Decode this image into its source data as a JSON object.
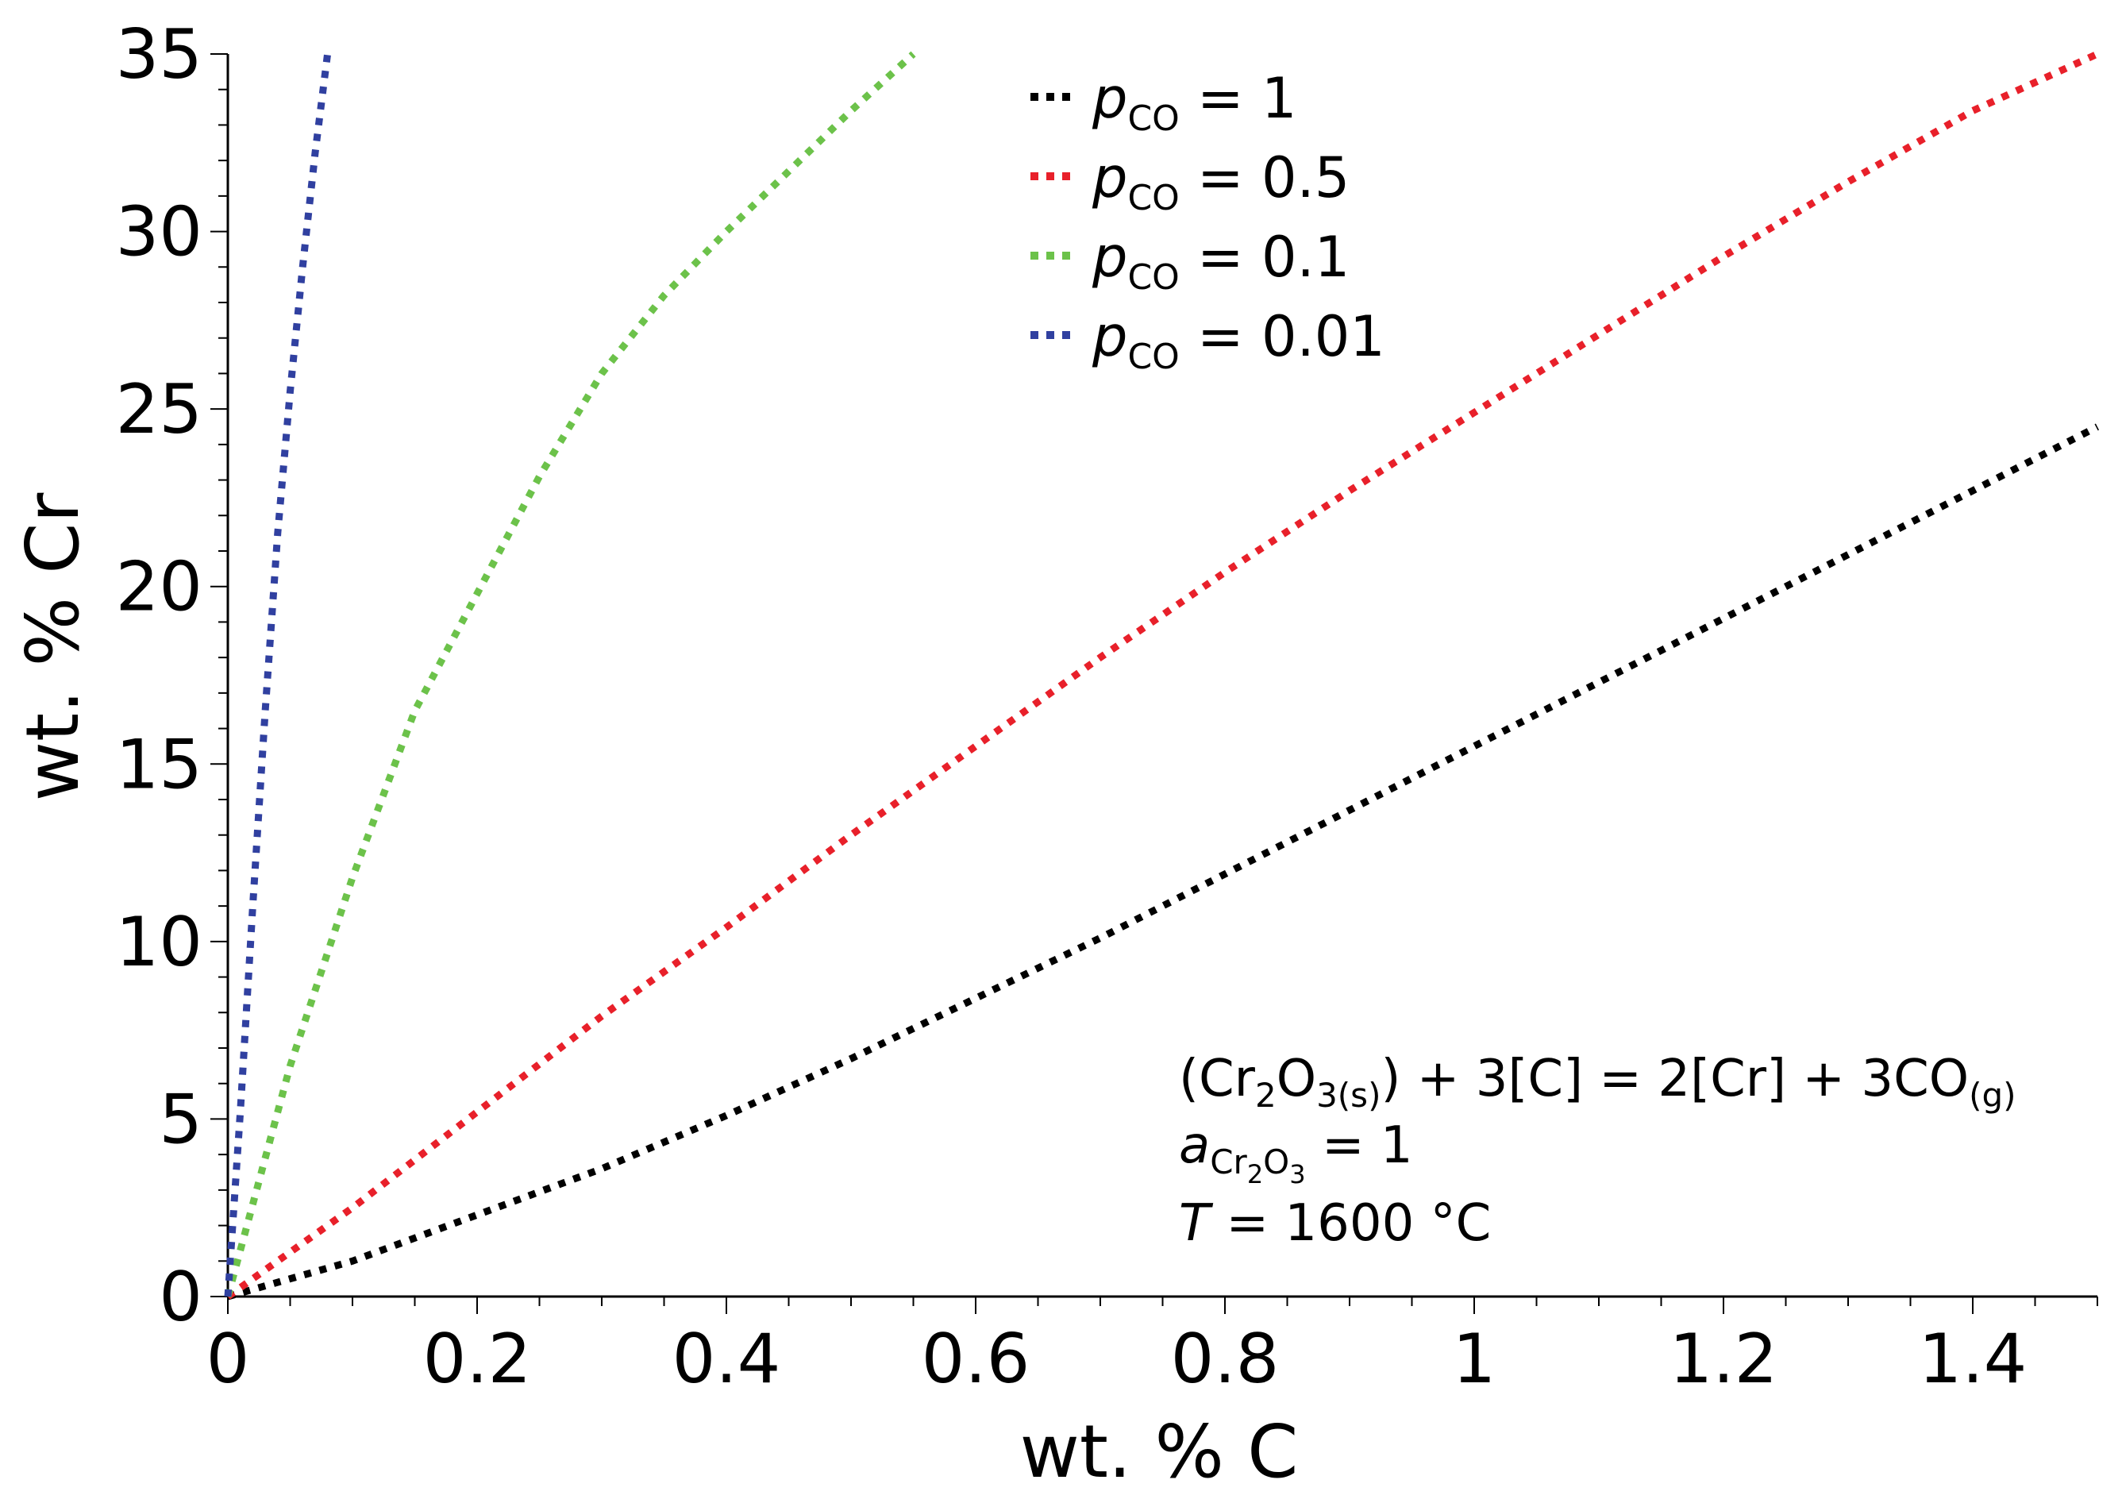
{
  "chart_data": {
    "type": "line",
    "xlabel": "wt. % C",
    "ylabel": "wt. % Cr",
    "xlim": [
      0,
      1.5
    ],
    "ylim": [
      0,
      35
    ],
    "x_ticks": [
      0,
      0.2,
      0.4,
      0.6,
      0.8,
      1,
      1.2,
      1.4
    ],
    "x_tick_labels": [
      "0",
      "0.2",
      "0.4",
      "0.6",
      "0.8",
      "1",
      "1.2",
      "1.4"
    ],
    "y_ticks": [
      0,
      5,
      10,
      15,
      20,
      25,
      30,
      35
    ],
    "y_tick_labels": [
      "0",
      "5",
      "10",
      "15",
      "20",
      "25",
      "30",
      "35"
    ],
    "grid": false,
    "legend_position": "top-center",
    "series": [
      {
        "name": "p_CO = 1",
        "legend": {
          "var": "p",
          "sub": "CO",
          "rest": " = 1"
        },
        "color": "#000000",
        "x": [
          0,
          0.1,
          0.2,
          0.3,
          0.4,
          0.5,
          0.6,
          0.7,
          0.8,
          0.9,
          1.0,
          1.1,
          1.2,
          1.3,
          1.4,
          1.5
        ],
        "y": [
          0,
          1.0,
          2.3,
          3.6,
          5.1,
          6.7,
          8.4,
          10.1,
          11.9,
          13.7,
          15.5,
          17.3,
          19.1,
          20.9,
          22.7,
          24.5
        ]
      },
      {
        "name": "p_CO = 0.5",
        "legend": {
          "var": "p",
          "sub": "CO",
          "rest": " = 0.5"
        },
        "color": "#e8202a",
        "x": [
          0,
          0.1,
          0.2,
          0.3,
          0.4,
          0.5,
          0.6,
          0.7,
          0.8,
          0.9,
          1.0,
          1.1,
          1.2,
          1.3,
          1.4,
          1.5
        ],
        "y": [
          0,
          2.5,
          5.2,
          7.9,
          10.4,
          13.0,
          15.5,
          18.0,
          20.4,
          22.7,
          24.9,
          27.1,
          29.3,
          31.4,
          33.4,
          35.0
        ]
      },
      {
        "name": "p_CO = 0.1",
        "legend": {
          "var": "p",
          "sub": "CO",
          "rest": " = 0.1"
        },
        "color": "#6cc24a",
        "x": [
          0,
          0.05,
          0.1,
          0.15,
          0.2,
          0.25,
          0.3,
          0.35,
          0.4,
          0.45,
          0.5,
          0.55
        ],
        "y": [
          0,
          6.5,
          11.8,
          16.5,
          19.8,
          23.1,
          26.0,
          28.2,
          30.0,
          31.7,
          33.4,
          35.0
        ]
      },
      {
        "name": "p_CO = 0.01",
        "legend": {
          "var": "p",
          "sub": "CO",
          "rest": " = 0.01"
        },
        "color": "#3040a0",
        "x": [
          0,
          0.01,
          0.02,
          0.03,
          0.04,
          0.05,
          0.06,
          0.07,
          0.08
        ],
        "y": [
          0,
          5.2,
          11.0,
          16.5,
          21.5,
          25.5,
          29.0,
          32.2,
          35.0
        ]
      }
    ],
    "annotations": {
      "reaction": {
        "lp": "(Cr",
        "s1": "2",
        "o": "O",
        "s2": "3(s)",
        "mid": ") + 3[C] = 2[Cr] + 3CO",
        "s3": "(g)"
      },
      "activity": {
        "var": "a",
        "sub1": "Cr",
        "sub2": "2",
        "sub3": "O",
        "sub4": "3",
        "rest": " = 1"
      },
      "temperature": {
        "var": "T",
        "rest": " = 1600 °C"
      }
    }
  }
}
